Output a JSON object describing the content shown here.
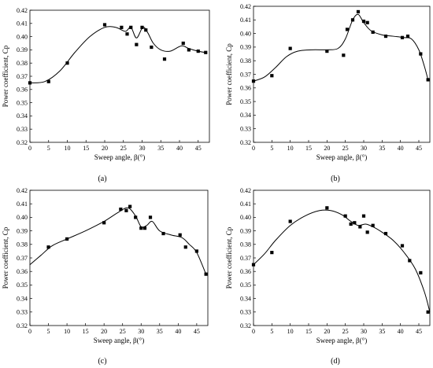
{
  "figure": {
    "x_axis_label": "Sweep angle, β(°)",
    "y_axis_label": "Power coefficient, Cp"
  },
  "chart_data": [
    {
      "type": "scatter",
      "panel_label": "(a)",
      "xlabel": "Sweep angle, β(°)",
      "ylabel": "Power coefficient, Cp",
      "xlim": [
        0,
        48
      ],
      "ylim": [
        0.32,
        0.42
      ],
      "xticks": [
        "0",
        "5",
        "10",
        "15",
        "20",
        "25",
        "30",
        "35",
        "40",
        "45"
      ],
      "yticks": [
        "0.32",
        "0.33",
        "0.34",
        "0.35",
        "0.36",
        "0.37",
        "0.38",
        "0.39",
        "0.40",
        "0.41",
        "0.42"
      ],
      "grid": false,
      "points": [
        {
          "x": 0,
          "y": 0.365
        },
        {
          "x": 5,
          "y": 0.366
        },
        {
          "x": 10,
          "y": 0.38
        },
        {
          "x": 20,
          "y": 0.409
        },
        {
          "x": 24.5,
          "y": 0.407
        },
        {
          "x": 26,
          "y": 0.402
        },
        {
          "x": 27,
          "y": 0.407
        },
        {
          "x": 28.5,
          "y": 0.394
        },
        {
          "x": 30,
          "y": 0.407
        },
        {
          "x": 31,
          "y": 0.405
        },
        {
          "x": 32.5,
          "y": 0.392
        },
        {
          "x": 36,
          "y": 0.383
        },
        {
          "x": 41,
          "y": 0.395
        },
        {
          "x": 42.5,
          "y": 0.39
        },
        {
          "x": 45,
          "y": 0.389
        },
        {
          "x": 47,
          "y": 0.388
        }
      ],
      "curve": [
        [
          0,
          0.365
        ],
        [
          4,
          0.366
        ],
        [
          8,
          0.374
        ],
        [
          12,
          0.388
        ],
        [
          16,
          0.4
        ],
        [
          20,
          0.407
        ],
        [
          23,
          0.407
        ],
        [
          25.5,
          0.404
        ],
        [
          27,
          0.407
        ],
        [
          28.5,
          0.399
        ],
        [
          30.2,
          0.407
        ],
        [
          31.5,
          0.403
        ],
        [
          33,
          0.395
        ],
        [
          35,
          0.39
        ],
        [
          37.5,
          0.389
        ],
        [
          40.5,
          0.393
        ],
        [
          42.5,
          0.391
        ],
        [
          45,
          0.389
        ],
        [
          47,
          0.388
        ]
      ]
    },
    {
      "type": "scatter",
      "panel_label": "(b)",
      "xlabel": "Sweep angle, β(°)",
      "ylabel": "Power coefficient, Cp",
      "xlim": [
        0,
        48
      ],
      "ylim": [
        0.32,
        0.42
      ],
      "xticks": [
        "0",
        "5",
        "10",
        "15",
        "20",
        "25",
        "30",
        "35",
        "40",
        "45"
      ],
      "yticks": [
        "0.32",
        "0.33",
        "0.34",
        "0.35",
        "0.36",
        "0.37",
        "0.38",
        "0.39",
        "0.40",
        "0.41",
        "0.42"
      ],
      "grid": false,
      "points": [
        {
          "x": 0,
          "y": 0.365
        },
        {
          "x": 5,
          "y": 0.369
        },
        {
          "x": 10,
          "y": 0.389
        },
        {
          "x": 20,
          "y": 0.387
        },
        {
          "x": 24.5,
          "y": 0.384
        },
        {
          "x": 25.5,
          "y": 0.403
        },
        {
          "x": 27,
          "y": 0.41
        },
        {
          "x": 28.5,
          "y": 0.416
        },
        {
          "x": 30,
          "y": 0.409
        },
        {
          "x": 31,
          "y": 0.408
        },
        {
          "x": 32.5,
          "y": 0.401
        },
        {
          "x": 36,
          "y": 0.398
        },
        {
          "x": 40.5,
          "y": 0.397
        },
        {
          "x": 42,
          "y": 0.398
        },
        {
          "x": 45.5,
          "y": 0.385
        },
        {
          "x": 47.5,
          "y": 0.366
        }
      ],
      "curve": [
        [
          0,
          0.365
        ],
        [
          3,
          0.368
        ],
        [
          6,
          0.375
        ],
        [
          9,
          0.383
        ],
        [
          12,
          0.387
        ],
        [
          16,
          0.388
        ],
        [
          20,
          0.388
        ],
        [
          23,
          0.389
        ],
        [
          25,
          0.396
        ],
        [
          27,
          0.41
        ],
        [
          28.5,
          0.414
        ],
        [
          30,
          0.408
        ],
        [
          32,
          0.402
        ],
        [
          35,
          0.399
        ],
        [
          38,
          0.398
        ],
        [
          41,
          0.397
        ],
        [
          43,
          0.396
        ],
        [
          45,
          0.388
        ],
        [
          46.5,
          0.376
        ],
        [
          47.5,
          0.366
        ]
      ]
    },
    {
      "type": "scatter",
      "panel_label": "(c)",
      "xlabel": "Sweep angle, β(°)",
      "ylabel": "Power coefficient, Cp",
      "xlim": [
        0,
        48
      ],
      "ylim": [
        0.32,
        0.42
      ],
      "xticks": [
        "0",
        "5",
        "10",
        "15",
        "20",
        "25",
        "30",
        "35",
        "40",
        "45"
      ],
      "yticks": [
        "0.32",
        "0.33",
        "0.34",
        "0.35",
        "0.36",
        "0.37",
        "0.38",
        "0.39",
        "0.40",
        "0.41",
        "0.42"
      ],
      "grid": false,
      "points": [
        {
          "x": 5,
          "y": 0.378
        },
        {
          "x": 10,
          "y": 0.384
        },
        {
          "x": 20,
          "y": 0.396
        },
        {
          "x": 24.5,
          "y": 0.406
        },
        {
          "x": 26,
          "y": 0.405
        },
        {
          "x": 27,
          "y": 0.408
        },
        {
          "x": 28.5,
          "y": 0.4
        },
        {
          "x": 30,
          "y": 0.392
        },
        {
          "x": 31,
          "y": 0.392
        },
        {
          "x": 32.5,
          "y": 0.4
        },
        {
          "x": 36,
          "y": 0.388
        },
        {
          "x": 40.5,
          "y": 0.387
        },
        {
          "x": 42,
          "y": 0.378
        },
        {
          "x": 45,
          "y": 0.375
        },
        {
          "x": 47.5,
          "y": 0.358
        }
      ],
      "curve": [
        [
          0,
          0.365
        ],
        [
          3,
          0.372
        ],
        [
          6,
          0.379
        ],
        [
          10,
          0.384
        ],
        [
          15,
          0.39
        ],
        [
          20,
          0.397
        ],
        [
          24,
          0.404
        ],
        [
          26.5,
          0.407
        ],
        [
          28.5,
          0.401
        ],
        [
          30,
          0.393
        ],
        [
          31.5,
          0.394
        ],
        [
          33,
          0.397
        ],
        [
          35,
          0.39
        ],
        [
          38,
          0.387
        ],
        [
          41,
          0.385
        ],
        [
          43,
          0.38
        ],
        [
          45,
          0.374
        ],
        [
          47.5,
          0.358
        ]
      ]
    },
    {
      "type": "scatter",
      "panel_label": "(d)",
      "xlabel": "Sweep angle, β(°)",
      "ylabel": "Power coefficient, Cp",
      "xlim": [
        0,
        48
      ],
      "ylim": [
        0.32,
        0.42
      ],
      "xticks": [
        "0",
        "5",
        "10",
        "15",
        "20",
        "25",
        "30",
        "35",
        "40",
        "45"
      ],
      "yticks": [
        "0.32",
        "0.33",
        "0.34",
        "0.35",
        "0.36",
        "0.37",
        "0.38",
        "0.39",
        "0.40",
        "0.41",
        "0.42"
      ],
      "grid": false,
      "points": [
        {
          "x": 0,
          "y": 0.365
        },
        {
          "x": 5,
          "y": 0.374
        },
        {
          "x": 10,
          "y": 0.397
        },
        {
          "x": 20,
          "y": 0.407
        },
        {
          "x": 25,
          "y": 0.401
        },
        {
          "x": 26.5,
          "y": 0.395
        },
        {
          "x": 27.5,
          "y": 0.396
        },
        {
          "x": 29,
          "y": 0.393
        },
        {
          "x": 30,
          "y": 0.401
        },
        {
          "x": 31,
          "y": 0.389
        },
        {
          "x": 32.5,
          "y": 0.394
        },
        {
          "x": 36,
          "y": 0.388
        },
        {
          "x": 40.5,
          "y": 0.379
        },
        {
          "x": 42.5,
          "y": 0.368
        },
        {
          "x": 45.5,
          "y": 0.359
        },
        {
          "x": 47.5,
          "y": 0.33
        }
      ],
      "curve": [
        [
          0,
          0.365
        ],
        [
          3,
          0.373
        ],
        [
          6,
          0.383
        ],
        [
          10,
          0.394
        ],
        [
          14,
          0.401
        ],
        [
          18,
          0.405
        ],
        [
          21,
          0.405
        ],
        [
          24,
          0.402
        ],
        [
          26.5,
          0.397
        ],
        [
          28.5,
          0.394
        ],
        [
          30.5,
          0.395
        ],
        [
          32.5,
          0.393
        ],
        [
          35,
          0.389
        ],
        [
          38,
          0.383
        ],
        [
          41,
          0.374
        ],
        [
          44,
          0.362
        ],
        [
          46.5,
          0.345
        ],
        [
          48,
          0.33
        ]
      ]
    }
  ]
}
